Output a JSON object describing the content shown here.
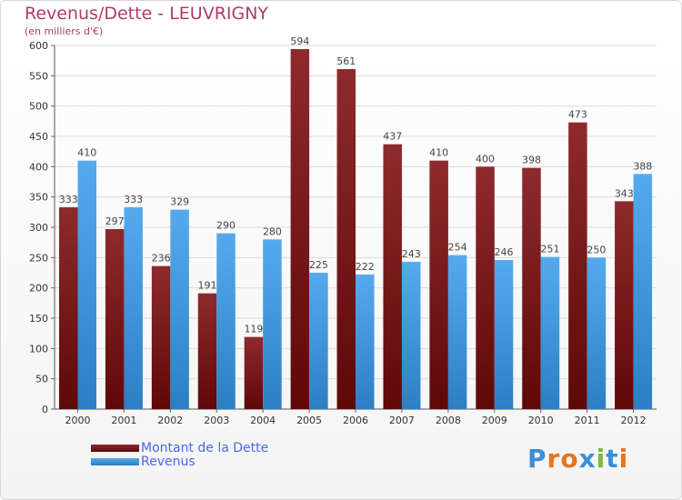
{
  "header": {
    "title": "Revenus/Dette - LEUVRIGNY",
    "subtitle": "(en milliers d'€)"
  },
  "colors": {
    "dette": "#7a1b1b",
    "revenus": "#3d98de",
    "title": "#b03a6a",
    "legend_text": "#4a68e8"
  },
  "logo": {
    "text": "Proxiti"
  },
  "chart_data": {
    "type": "bar",
    "title": "Revenus/Dette - LEUVRIGNY",
    "ylabel": "(en milliers d'€)",
    "xlabel": "",
    "ylim": [
      0,
      600
    ],
    "yticks": [
      0,
      50,
      100,
      150,
      200,
      250,
      300,
      350,
      400,
      450,
      500,
      550,
      600
    ],
    "grid": true,
    "legend_position": "bottom-left",
    "categories": [
      "2000",
      "2001",
      "2002",
      "2003",
      "2004",
      "2005",
      "2006",
      "2007",
      "2008",
      "2009",
      "2010",
      "2011",
      "2012"
    ],
    "series": [
      {
        "name": "Montant de la Dette",
        "color": "#7a1b1b",
        "values": [
          333,
          297,
          236,
          191,
          119,
          594,
          561,
          437,
          410,
          400,
          398,
          473,
          343
        ]
      },
      {
        "name": "Revenus",
        "color": "#3d98de",
        "values": [
          410,
          333,
          329,
          290,
          280,
          225,
          222,
          243,
          254,
          246,
          251,
          250,
          388
        ]
      }
    ]
  }
}
